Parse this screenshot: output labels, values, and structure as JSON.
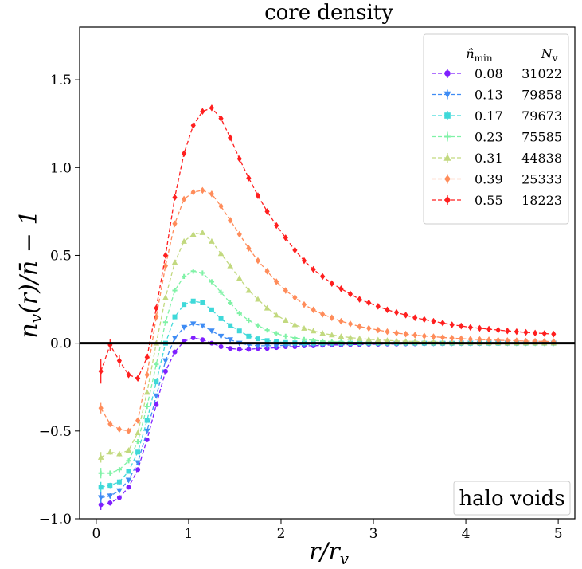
{
  "chart_data": {
    "type": "line",
    "title": "core density",
    "xlabel": "r/r_v",
    "ylabel": "n_v(r)/n̄ − 1",
    "xlim": [
      -0.18,
      5.18
    ],
    "ylim": [
      -1.0,
      1.8
    ],
    "xticks": [
      0,
      1,
      2,
      3,
      4,
      5
    ],
    "xtick_labels": [
      "0",
      "1",
      "2",
      "3",
      "4",
      "5"
    ],
    "yticks": [
      -1.0,
      -0.5,
      0.0,
      0.5,
      1.0,
      1.5
    ],
    "ytick_labels": [
      "−1.0",
      "−0.5",
      "0.0",
      "0.5",
      "1.0",
      "1.5"
    ],
    "grid": false,
    "legend": {
      "placement": "top-right",
      "header_nmin": "n̂_min",
      "header_nv": "N_v"
    },
    "annotation": "halo voids",
    "zero_line": 0.0,
    "x": [
      0.05,
      0.15,
      0.25,
      0.35,
      0.45,
      0.55,
      0.65,
      0.75,
      0.85,
      0.95,
      1.05,
      1.15,
      1.25,
      1.35,
      1.45,
      1.55,
      1.65,
      1.75,
      1.85,
      1.95,
      2.05,
      2.15,
      2.25,
      2.35,
      2.45,
      2.55,
      2.65,
      2.75,
      2.85,
      2.95,
      3.05,
      3.15,
      3.25,
      3.35,
      3.45,
      3.55,
      3.65,
      3.75,
      3.85,
      3.95,
      4.05,
      4.15,
      4.25,
      4.35,
      4.45,
      4.55,
      4.65,
      4.75,
      4.85,
      4.95
    ],
    "series": [
      {
        "name": "0.08",
        "count": "31022",
        "color": "#7f1fff",
        "marker": "circle",
        "values": [
          -0.92,
          -0.91,
          -0.88,
          -0.82,
          -0.72,
          -0.55,
          -0.35,
          -0.16,
          -0.05,
          0.01,
          0.03,
          0.02,
          0.0,
          -0.02,
          -0.03,
          -0.035,
          -0.035,
          -0.03,
          -0.03,
          -0.025,
          -0.02,
          -0.02,
          -0.015,
          -0.015,
          -0.012,
          -0.01,
          -0.01,
          -0.008,
          -0.008,
          -0.006,
          -0.006,
          -0.005,
          -0.005,
          -0.004,
          -0.004,
          -0.003,
          -0.003,
          -0.003,
          -0.002,
          -0.002,
          -0.002,
          -0.002,
          -0.001,
          -0.001,
          -0.001,
          -0.001,
          -0.001,
          0.0,
          0.0,
          0.0
        ]
      },
      {
        "name": "0.13",
        "count": "79858",
        "color": "#3f8cf4",
        "marker": "triangle-down",
        "values": [
          -0.88,
          -0.87,
          -0.84,
          -0.78,
          -0.68,
          -0.5,
          -0.3,
          -0.1,
          0.03,
          0.09,
          0.11,
          0.1,
          0.07,
          0.04,
          0.02,
          0.0,
          -0.01,
          -0.015,
          -0.015,
          -0.015,
          -0.012,
          -0.01,
          -0.008,
          -0.007,
          -0.006,
          -0.005,
          -0.004,
          -0.004,
          -0.003,
          -0.003,
          -0.002,
          -0.002,
          -0.002,
          -0.002,
          -0.001,
          -0.001,
          -0.001,
          -0.001,
          -0.001,
          0.0,
          0.0,
          0.0,
          0.0,
          0.0,
          0.0,
          0.0,
          0.0,
          0.0,
          0.0,
          0.0
        ]
      },
      {
        "name": "0.17",
        "count": "79673",
        "color": "#3fd9d9",
        "marker": "square",
        "values": [
          -0.82,
          -0.81,
          -0.79,
          -0.73,
          -0.62,
          -0.44,
          -0.22,
          0.0,
          0.15,
          0.22,
          0.24,
          0.23,
          0.19,
          0.14,
          0.1,
          0.07,
          0.04,
          0.025,
          0.015,
          0.008,
          0.004,
          0.002,
          0.001,
          0.0,
          0.0,
          0.0,
          0.0,
          0.0,
          0.0,
          0.0,
          0.0,
          0.0,
          0.0,
          0.0,
          0.0,
          0.0,
          0.0,
          0.0,
          0.0,
          0.0,
          0.0,
          0.0,
          0.0,
          0.0,
          0.0,
          0.0,
          0.0,
          0.0,
          0.0,
          0.0
        ]
      },
      {
        "name": "0.23",
        "count": "75585",
        "color": "#7ff2a6",
        "marker": "plus",
        "values": [
          -0.74,
          -0.74,
          -0.72,
          -0.67,
          -0.56,
          -0.36,
          -0.12,
          0.12,
          0.3,
          0.38,
          0.41,
          0.4,
          0.35,
          0.29,
          0.23,
          0.17,
          0.13,
          0.1,
          0.075,
          0.055,
          0.04,
          0.03,
          0.022,
          0.016,
          0.012,
          0.009,
          0.007,
          0.005,
          0.004,
          0.003,
          0.002,
          0.002,
          0.001,
          0.001,
          0.001,
          0.001,
          0.0,
          0.0,
          0.0,
          0.0,
          0.0,
          0.0,
          0.0,
          0.0,
          0.0,
          0.0,
          0.0,
          0.0,
          0.0,
          0.0
        ]
      },
      {
        "name": "0.31",
        "count": "44838",
        "color": "#c2d97f",
        "marker": "triangle-up",
        "values": [
          -0.65,
          -0.62,
          -0.63,
          -0.61,
          -0.51,
          -0.28,
          0.0,
          0.26,
          0.46,
          0.58,
          0.62,
          0.63,
          0.58,
          0.51,
          0.44,
          0.37,
          0.3,
          0.25,
          0.2,
          0.16,
          0.13,
          0.105,
          0.085,
          0.07,
          0.057,
          0.047,
          0.039,
          0.032,
          0.027,
          0.022,
          0.019,
          0.016,
          0.013,
          0.011,
          0.01,
          0.008,
          0.007,
          0.006,
          0.005,
          0.004,
          0.004,
          0.003,
          0.003,
          0.003,
          0.002,
          0.002,
          0.002,
          0.002,
          0.001,
          0.001
        ]
      },
      {
        "name": "0.39",
        "count": "25333",
        "color": "#ff8c5a",
        "marker": "diamond",
        "values": [
          -0.37,
          -0.46,
          -0.49,
          -0.5,
          -0.44,
          -0.18,
          0.15,
          0.44,
          0.68,
          0.82,
          0.86,
          0.87,
          0.85,
          0.78,
          0.7,
          0.62,
          0.54,
          0.47,
          0.41,
          0.35,
          0.3,
          0.26,
          0.22,
          0.19,
          0.165,
          0.145,
          0.125,
          0.11,
          0.095,
          0.085,
          0.075,
          0.066,
          0.058,
          0.052,
          0.046,
          0.041,
          0.037,
          0.033,
          0.029,
          0.026,
          0.023,
          0.021,
          0.019,
          0.017,
          0.015,
          0.014,
          0.012,
          0.011,
          0.01,
          0.009
        ]
      },
      {
        "name": "0.55",
        "count": "18223",
        "color": "#ff1f1f",
        "marker": "diamond",
        "values": [
          -0.16,
          -0.01,
          -0.1,
          -0.18,
          -0.2,
          -0.08,
          0.2,
          0.5,
          0.83,
          1.08,
          1.24,
          1.32,
          1.34,
          1.28,
          1.17,
          1.05,
          0.94,
          0.84,
          0.75,
          0.67,
          0.6,
          0.53,
          0.47,
          0.42,
          0.38,
          0.34,
          0.31,
          0.28,
          0.25,
          0.23,
          0.21,
          0.19,
          0.175,
          0.16,
          0.145,
          0.135,
          0.125,
          0.115,
          0.105,
          0.098,
          0.09,
          0.085,
          0.08,
          0.075,
          0.07,
          0.066,
          0.062,
          0.058,
          0.055,
          0.052
        ]
      }
    ]
  }
}
